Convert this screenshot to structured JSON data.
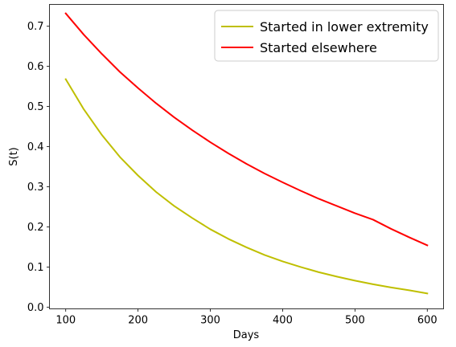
{
  "chart_data": {
    "type": "line",
    "title": "",
    "xlabel": "Days",
    "ylabel": "S(t)",
    "xlim": [
      77.5,
      622.5
    ],
    "ylim": [
      -0.0043,
      0.7544
    ],
    "grid": false,
    "legend_position": "top-right",
    "x_ticks": [
      100,
      200,
      300,
      400,
      500,
      600
    ],
    "x_tick_labels": [
      "100",
      "200",
      "300",
      "400",
      "500",
      "600"
    ],
    "y_ticks": [
      0.0,
      0.1,
      0.2,
      0.3,
      0.4,
      0.5,
      0.6,
      0.7
    ],
    "y_tick_labels": [
      "0.0",
      "0.1",
      "0.2",
      "0.3",
      "0.4",
      "0.5",
      "0.6",
      "0.7"
    ],
    "series": [
      {
        "name": "Started in lower extremity",
        "color": "#bfbf00",
        "x": [
          100,
          125,
          150,
          175,
          200,
          225,
          250,
          275,
          300,
          325,
          350,
          375,
          400,
          425,
          450,
          475,
          500,
          525,
          550,
          575,
          600
        ],
        "y": [
          0.568,
          0.493,
          0.429,
          0.374,
          0.328,
          0.287,
          0.252,
          0.222,
          0.194,
          0.17,
          0.149,
          0.13,
          0.114,
          0.1,
          0.087,
          0.076,
          0.066,
          0.057,
          0.049,
          0.042,
          0.034
        ]
      },
      {
        "name": "Started elsewhere",
        "color": "#ff0000",
        "x": [
          100,
          125,
          150,
          175,
          200,
          225,
          250,
          275,
          300,
          325,
          350,
          375,
          400,
          425,
          450,
          475,
          500,
          525,
          550,
          575,
          600
        ],
        "y": [
          0.732,
          0.679,
          0.631,
          0.586,
          0.546,
          0.508,
          0.473,
          0.441,
          0.411,
          0.383,
          0.357,
          0.333,
          0.311,
          0.29,
          0.27,
          0.252,
          0.234,
          0.218,
          0.195,
          0.174,
          0.154
        ]
      }
    ]
  }
}
